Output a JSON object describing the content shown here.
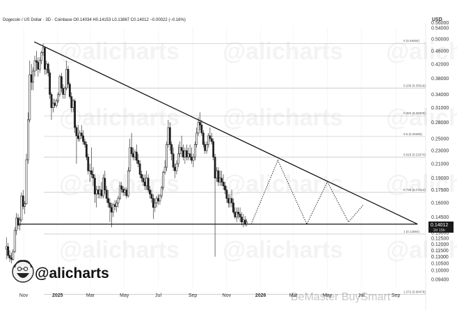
{
  "header": {
    "text": "Dogecoin / US Dollar · 3D · Coinbase  O0.14034  H0.14153  L0.13867  C0.14012  −0.00022 (−0.16%)",
    "currency": "USD"
  },
  "price_tag": {
    "value": "0.14012",
    "countdown": "2d 15h"
  },
  "logo": {
    "handle": "@alicharts"
  },
  "watermark": {
    "text": "@alicharts",
    "bottom_credit": "BeMaster BuySmart"
  },
  "colors": {
    "up": "#222222",
    "down": "#222222",
    "line": "#111111",
    "fib": "#b5b5b5",
    "tag_bg": "#1a1a1a",
    "tag_text": "#ffffff",
    "grid": "#f0f0f0"
  },
  "chart_data": {
    "type": "candlestick",
    "y_axis": {
      "scale": "log",
      "ylim": [
        0.0892,
        0.56
      ],
      "ticks": [
        "0.09400",
        "0.10000",
        "0.10500",
        "0.11000",
        "0.11500",
        "0.12000",
        "0.12500",
        "0.13000",
        "0.14500",
        "0.16000",
        "0.17500",
        "0.19000",
        "0.21000",
        "0.23000",
        "0.25000",
        "0.28000",
        "0.31000",
        "0.34000",
        "0.38000",
        "0.42000",
        "0.46000",
        "0.50000",
        "0.54000"
      ],
      "top_clipped_tick": "0.56000"
    },
    "x_axis": {
      "ticks": [
        {
          "label": "Nov",
          "date": "2024-11-01"
        },
        {
          "label": "2025",
          "date": "2025-01-01"
        },
        {
          "label": "Mar",
          "date": "2025-03-01"
        },
        {
          "label": "May",
          "date": "2025-05-01"
        },
        {
          "label": "Jul",
          "date": "2025-07-01"
        },
        {
          "label": "Sep",
          "date": "2025-09-01"
        },
        {
          "label": "Nov",
          "date": "2025-11-01"
        },
        {
          "label": "2026",
          "date": "2026-01-01"
        },
        {
          "label": "Mar",
          "date": "2026-03-01"
        },
        {
          "label": "May",
          "date": "2026-05-01"
        },
        {
          "label": "Jul",
          "date": "2026-07-01"
        },
        {
          "label": "Sep",
          "date": "2026-09-01"
        }
      ]
    },
    "fib_levels": [
      {
        "label": "0 (0.48484)",
        "value": 0.48484
      },
      {
        "label": "0.236 (0.35516)",
        "value": 0.35516
      },
      {
        "label": "0.382 (0.29300)",
        "value": 0.293
      },
      {
        "label": "0.5 (0.25385)",
        "value": 0.25385
      },
      {
        "label": "0.618 (0.21974)",
        "value": 0.21974
      },
      {
        "label": "0.786 (0.17212)",
        "value": 0.17212
      },
      {
        "label": "1 (0.12884)",
        "value": 0.12884
      },
      {
        "label": "1.272 (0.08479)",
        "value": 0.08479
      }
    ],
    "resistance_line": [
      {
        "date": "2024-11-20",
        "value": 0.49
      },
      {
        "date": "2026-10-10",
        "value": 0.138
      }
    ],
    "support_line": [
      {
        "date": "2024-10-22",
        "value": 0.138
      },
      {
        "date": "2026-10-10",
        "value": 0.138
      }
    ],
    "projection_path": [
      {
        "date": "2025-12-15",
        "value": 0.138
      },
      {
        "date": "2026-02-01",
        "value": 0.215
      },
      {
        "date": "2026-03-25",
        "value": 0.138
      },
      {
        "date": "2026-05-01",
        "value": 0.185
      },
      {
        "date": "2026-06-08",
        "value": 0.14
      },
      {
        "date": "2026-07-05",
        "value": 0.158
      }
    ],
    "current_price": 0.14012,
    "candles": [
      [
        "2024-10-01",
        0.116,
        0.126,
        0.108,
        0.118
      ],
      [
        "2024-10-04",
        0.118,
        0.121,
        0.109,
        0.111
      ],
      [
        "2024-10-07",
        0.111,
        0.115,
        0.106,
        0.109
      ],
      [
        "2024-10-10",
        0.109,
        0.113,
        0.105,
        0.108
      ],
      [
        "2024-10-13",
        0.108,
        0.116,
        0.107,
        0.114
      ],
      [
        "2024-10-16",
        0.114,
        0.135,
        0.113,
        0.132
      ],
      [
        "2024-10-19",
        0.132,
        0.149,
        0.128,
        0.144
      ],
      [
        "2024-10-22",
        0.144,
        0.148,
        0.133,
        0.137
      ],
      [
        "2024-10-25",
        0.137,
        0.145,
        0.132,
        0.142
      ],
      [
        "2024-10-28",
        0.142,
        0.172,
        0.14,
        0.168
      ],
      [
        "2024-10-31",
        0.168,
        0.175,
        0.153,
        0.156
      ],
      [
        "2024-11-03",
        0.156,
        0.162,
        0.148,
        0.159
      ],
      [
        "2024-11-06",
        0.159,
        0.225,
        0.158,
        0.216
      ],
      [
        "2024-11-09",
        0.216,
        0.3,
        0.21,
        0.285
      ],
      [
        "2024-11-12",
        0.285,
        0.43,
        0.28,
        0.39
      ],
      [
        "2024-11-15",
        0.39,
        0.42,
        0.35,
        0.37
      ],
      [
        "2024-11-18",
        0.37,
        0.41,
        0.35,
        0.4
      ],
      [
        "2024-11-21",
        0.4,
        0.445,
        0.385,
        0.43
      ],
      [
        "2024-11-24",
        0.43,
        0.46,
        0.4,
        0.425
      ],
      [
        "2024-11-27",
        0.425,
        0.44,
        0.385,
        0.405
      ],
      [
        "2024-11-30",
        0.405,
        0.44,
        0.395,
        0.43
      ],
      [
        "2024-12-03",
        0.43,
        0.46,
        0.42,
        0.455
      ],
      [
        "2024-12-06",
        0.455,
        0.485,
        0.445,
        0.47
      ],
      [
        "2024-12-09",
        0.47,
        0.472,
        0.39,
        0.405
      ],
      [
        "2024-12-12",
        0.405,
        0.43,
        0.39,
        0.42
      ],
      [
        "2024-12-15",
        0.42,
        0.425,
        0.385,
        0.395
      ],
      [
        "2024-12-18",
        0.395,
        0.405,
        0.33,
        0.34
      ],
      [
        "2024-12-21",
        0.34,
        0.345,
        0.285,
        0.31
      ],
      [
        "2024-12-24",
        0.31,
        0.33,
        0.3,
        0.32
      ],
      [
        "2024-12-27",
        0.32,
        0.33,
        0.31,
        0.315
      ],
      [
        "2024-12-30",
        0.315,
        0.33,
        0.31,
        0.325
      ],
      [
        "2025-01-02",
        0.325,
        0.345,
        0.32,
        0.34
      ],
      [
        "2025-01-05",
        0.34,
        0.39,
        0.335,
        0.385
      ],
      [
        "2025-01-08",
        0.385,
        0.395,
        0.345,
        0.355
      ],
      [
        "2025-01-11",
        0.355,
        0.365,
        0.33,
        0.34
      ],
      [
        "2025-01-14",
        0.34,
        0.36,
        0.33,
        0.355
      ],
      [
        "2025-01-17",
        0.355,
        0.43,
        0.35,
        0.405
      ],
      [
        "2025-01-20",
        0.405,
        0.415,
        0.355,
        0.365
      ],
      [
        "2025-01-23",
        0.365,
        0.37,
        0.33,
        0.335
      ],
      [
        "2025-01-26",
        0.335,
        0.345,
        0.3,
        0.31
      ],
      [
        "2025-01-29",
        0.31,
        0.33,
        0.3,
        0.325
      ],
      [
        "2025-02-01",
        0.325,
        0.33,
        0.26,
        0.27
      ],
      [
        "2025-02-04",
        0.27,
        0.275,
        0.21,
        0.255
      ],
      [
        "2025-02-07",
        0.255,
        0.275,
        0.245,
        0.25
      ],
      [
        "2025-02-10",
        0.25,
        0.265,
        0.245,
        0.26
      ],
      [
        "2025-02-13",
        0.26,
        0.275,
        0.25,
        0.255
      ],
      [
        "2025-02-16",
        0.255,
        0.265,
        0.24,
        0.245
      ],
      [
        "2025-02-19",
        0.245,
        0.25,
        0.235,
        0.24
      ],
      [
        "2025-02-22",
        0.24,
        0.245,
        0.215,
        0.22
      ],
      [
        "2025-02-25",
        0.22,
        0.225,
        0.195,
        0.2
      ],
      [
        "2025-02-28",
        0.2,
        0.21,
        0.185,
        0.2
      ],
      [
        "2025-03-03",
        0.2,
        0.235,
        0.19,
        0.195
      ],
      [
        "2025-03-06",
        0.195,
        0.205,
        0.18,
        0.19
      ],
      [
        "2025-03-09",
        0.19,
        0.195,
        0.16,
        0.17
      ],
      [
        "2025-03-12",
        0.17,
        0.18,
        0.155,
        0.175
      ],
      [
        "2025-03-15",
        0.175,
        0.18,
        0.165,
        0.17
      ],
      [
        "2025-03-18",
        0.17,
        0.18,
        0.165,
        0.175
      ],
      [
        "2025-03-21",
        0.175,
        0.185,
        0.165,
        0.168
      ],
      [
        "2025-03-24",
        0.168,
        0.195,
        0.165,
        0.19
      ],
      [
        "2025-03-27",
        0.19,
        0.2,
        0.17,
        0.175
      ],
      [
        "2025-03-30",
        0.175,
        0.18,
        0.16,
        0.165
      ],
      [
        "2025-04-02",
        0.165,
        0.175,
        0.155,
        0.16
      ],
      [
        "2025-04-05",
        0.16,
        0.165,
        0.14,
        0.155
      ],
      [
        "2025-04-08",
        0.155,
        0.16,
        0.135,
        0.15
      ],
      [
        "2025-04-11",
        0.15,
        0.16,
        0.145,
        0.158
      ],
      [
        "2025-04-14",
        0.158,
        0.163,
        0.152,
        0.156
      ],
      [
        "2025-04-17",
        0.156,
        0.163,
        0.15,
        0.16
      ],
      [
        "2025-04-20",
        0.16,
        0.168,
        0.155,
        0.165
      ],
      [
        "2025-04-23",
        0.165,
        0.185,
        0.163,
        0.18
      ],
      [
        "2025-04-26",
        0.18,
        0.185,
        0.172,
        0.176
      ],
      [
        "2025-04-29",
        0.176,
        0.18,
        0.168,
        0.172
      ],
      [
        "2025-05-02",
        0.172,
        0.178,
        0.168,
        0.175
      ],
      [
        "2025-05-05",
        0.175,
        0.178,
        0.165,
        0.168
      ],
      [
        "2025-05-08",
        0.168,
        0.205,
        0.166,
        0.2
      ],
      [
        "2025-05-11",
        0.2,
        0.25,
        0.198,
        0.235
      ],
      [
        "2025-05-14",
        0.235,
        0.26,
        0.22,
        0.225
      ],
      [
        "2025-05-17",
        0.225,
        0.235,
        0.215,
        0.22
      ],
      [
        "2025-05-20",
        0.22,
        0.232,
        0.215,
        0.228
      ],
      [
        "2025-05-23",
        0.228,
        0.24,
        0.21,
        0.215
      ],
      [
        "2025-05-26",
        0.215,
        0.225,
        0.205,
        0.21
      ],
      [
        "2025-05-29",
        0.21,
        0.215,
        0.19,
        0.195
      ],
      [
        "2025-06-01",
        0.195,
        0.2,
        0.185,
        0.19
      ],
      [
        "2025-06-04",
        0.19,
        0.195,
        0.18,
        0.185
      ],
      [
        "2025-06-07",
        0.185,
        0.195,
        0.175,
        0.18
      ],
      [
        "2025-06-10",
        0.18,
        0.2,
        0.175,
        0.19
      ],
      [
        "2025-06-13",
        0.19,
        0.195,
        0.172,
        0.175
      ],
      [
        "2025-06-16",
        0.175,
        0.18,
        0.165,
        0.17
      ],
      [
        "2025-06-19",
        0.17,
        0.175,
        0.16,
        0.165
      ],
      [
        "2025-06-22",
        0.165,
        0.17,
        0.143,
        0.155
      ],
      [
        "2025-06-25",
        0.155,
        0.165,
        0.15,
        0.16
      ],
      [
        "2025-06-28",
        0.16,
        0.168,
        0.155,
        0.165
      ],
      [
        "2025-07-01",
        0.165,
        0.17,
        0.158,
        0.162
      ],
      [
        "2025-07-04",
        0.162,
        0.17,
        0.158,
        0.168
      ],
      [
        "2025-07-07",
        0.168,
        0.18,
        0.165,
        0.178
      ],
      [
        "2025-07-10",
        0.178,
        0.2,
        0.175,
        0.198
      ],
      [
        "2025-07-13",
        0.198,
        0.215,
        0.195,
        0.205
      ],
      [
        "2025-07-16",
        0.205,
        0.245,
        0.2,
        0.24
      ],
      [
        "2025-07-19",
        0.24,
        0.285,
        0.235,
        0.27
      ],
      [
        "2025-07-22",
        0.27,
        0.28,
        0.23,
        0.24
      ],
      [
        "2025-07-25",
        0.24,
        0.245,
        0.215,
        0.225
      ],
      [
        "2025-07-28",
        0.225,
        0.235,
        0.2,
        0.205
      ],
      [
        "2025-07-31",
        0.205,
        0.21,
        0.19,
        0.2
      ],
      [
        "2025-08-03",
        0.2,
        0.215,
        0.195,
        0.21
      ],
      [
        "2025-08-06",
        0.21,
        0.24,
        0.205,
        0.225
      ],
      [
        "2025-08-09",
        0.225,
        0.245,
        0.22,
        0.235
      ],
      [
        "2025-08-12",
        0.235,
        0.255,
        0.22,
        0.23
      ],
      [
        "2025-08-15",
        0.23,
        0.24,
        0.215,
        0.22
      ],
      [
        "2025-08-18",
        0.22,
        0.235,
        0.21,
        0.23
      ],
      [
        "2025-08-21",
        0.23,
        0.24,
        0.215,
        0.22
      ],
      [
        "2025-08-24",
        0.22,
        0.235,
        0.215,
        0.225
      ],
      [
        "2025-08-27",
        0.225,
        0.24,
        0.215,
        0.22
      ],
      [
        "2025-08-30",
        0.22,
        0.235,
        0.21,
        0.215
      ],
      [
        "2025-09-02",
        0.215,
        0.225,
        0.205,
        0.22
      ],
      [
        "2025-09-05",
        0.22,
        0.245,
        0.215,
        0.24
      ],
      [
        "2025-09-08",
        0.24,
        0.27,
        0.235,
        0.26
      ],
      [
        "2025-09-11",
        0.26,
        0.29,
        0.255,
        0.28
      ],
      [
        "2025-09-14",
        0.28,
        0.3,
        0.265,
        0.275
      ],
      [
        "2025-09-17",
        0.275,
        0.285,
        0.255,
        0.26
      ],
      [
        "2025-09-20",
        0.26,
        0.265,
        0.235,
        0.24
      ],
      [
        "2025-09-23",
        0.24,
        0.245,
        0.225,
        0.23
      ],
      [
        "2025-09-26",
        0.23,
        0.245,
        0.225,
        0.24
      ],
      [
        "2025-09-29",
        0.24,
        0.26,
        0.235,
        0.255
      ],
      [
        "2025-10-02",
        0.255,
        0.27,
        0.245,
        0.25
      ],
      [
        "2025-10-05",
        0.25,
        0.26,
        0.24,
        0.245
      ],
      [
        "2025-10-08",
        0.245,
        0.25,
        0.215,
        0.22
      ],
      [
        "2025-10-11",
        0.22,
        0.225,
        0.11,
        0.19
      ],
      [
        "2025-10-14",
        0.19,
        0.205,
        0.185,
        0.2
      ],
      [
        "2025-10-17",
        0.2,
        0.205,
        0.18,
        0.185
      ],
      [
        "2025-10-20",
        0.185,
        0.2,
        0.18,
        0.19
      ],
      [
        "2025-10-23",
        0.19,
        0.2,
        0.18,
        0.185
      ],
      [
        "2025-10-26",
        0.185,
        0.195,
        0.175,
        0.18
      ],
      [
        "2025-10-29",
        0.18,
        0.185,
        0.17,
        0.175
      ],
      [
        "2025-11-01",
        0.175,
        0.18,
        0.16,
        0.165
      ],
      [
        "2025-11-04",
        0.165,
        0.17,
        0.155,
        0.16
      ],
      [
        "2025-11-07",
        0.16,
        0.17,
        0.155,
        0.165
      ],
      [
        "2025-11-10",
        0.165,
        0.175,
        0.155,
        0.16
      ],
      [
        "2025-11-13",
        0.16,
        0.165,
        0.148,
        0.15
      ],
      [
        "2025-11-16",
        0.15,
        0.155,
        0.143,
        0.145
      ],
      [
        "2025-11-19",
        0.145,
        0.155,
        0.14,
        0.15
      ],
      [
        "2025-11-22",
        0.15,
        0.155,
        0.143,
        0.148
      ],
      [
        "2025-11-25",
        0.148,
        0.155,
        0.14,
        0.145
      ],
      [
        "2025-11-28",
        0.145,
        0.15,
        0.137,
        0.14
      ],
      [
        "2025-12-01",
        0.14,
        0.148,
        0.135,
        0.142
      ],
      [
        "2025-12-04",
        0.142,
        0.146,
        0.136,
        0.138
      ],
      [
        "2025-12-07",
        0.138,
        0.143,
        0.136,
        0.14
      ]
    ]
  }
}
